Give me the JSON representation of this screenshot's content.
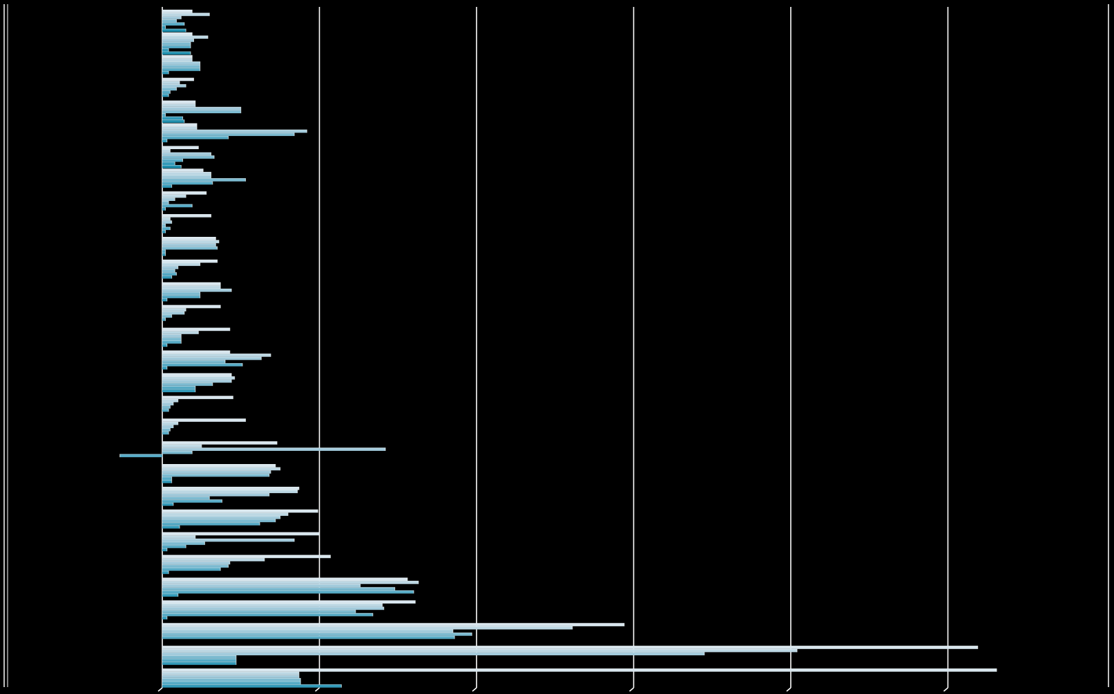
{
  "background_color": "#000000",
  "chart_data": {
    "type": "bar",
    "orientation": "horizontal",
    "title": "",
    "xlabel": "",
    "ylabel": "",
    "grid": true,
    "legend": "none",
    "xlim": [
      -0.3,
      5.8
    ],
    "gridline_values": [
      0,
      1,
      2,
      3,
      4,
      5
    ],
    "gridline_color": "#ffffff",
    "bar_colors": [
      "#d8e6ee",
      "#bcd7e3",
      "#a2cadb",
      "#7cbad0",
      "#56aac5",
      "#3299b8",
      "#1e8eac"
    ],
    "bar_outline_color": "#f4f8fa",
    "series": [
      {
        "name": "",
        "values": [
          0.19,
          0.19,
          0.19,
          0.2,
          0.21,
          0.22,
          0.23,
          0.26,
          0.28,
          0.31,
          0.34,
          0.35,
          0.37,
          0.37,
          0.43,
          0.43,
          0.44,
          0.45,
          0.53,
          0.73,
          0.72,
          0.87,
          0.99,
          1.0,
          1.07,
          1.56,
          1.61,
          2.94,
          5.19,
          5.31
        ]
      },
      {
        "name": "",
        "values": [
          0.3,
          0.29,
          0.19,
          0.11,
          0.21,
          0.22,
          0.05,
          0.31,
          0.15,
          0.05,
          0.36,
          0.24,
          0.37,
          0.15,
          0.23,
          0.69,
          0.46,
          0.1,
          0.1,
          0.25,
          0.75,
          0.86,
          0.8,
          0.21,
          0.65,
          1.63,
          1.4,
          2.61,
          4.04,
          0.87
        ]
      },
      {
        "name": "",
        "values": [
          0.12,
          0.2,
          0.24,
          0.15,
          0.5,
          0.92,
          0.31,
          0.31,
          0.08,
          0.06,
          0.34,
          0.1,
          0.44,
          0.14,
          0.12,
          0.63,
          0.44,
          0.07,
          0.07,
          1.42,
          0.69,
          0.68,
          0.75,
          0.84,
          0.43,
          1.26,
          1.41,
          1.85,
          3.45,
          0.87
        ]
      },
      {
        "name": "",
        "values": [
          0.09,
          0.18,
          0.24,
          0.09,
          0.5,
          0.84,
          0.33,
          0.53,
          0.04,
          0.02,
          0.35,
          0.08,
          0.24,
          0.06,
          0.12,
          0.4,
          0.32,
          0.05,
          0.05,
          0.19,
          0.68,
          0.3,
          0.72,
          0.27,
          0.42,
          1.48,
          1.23,
          1.97,
          0.47,
          0.88
        ]
      },
      {
        "name": "",
        "values": [
          0.14,
          0.18,
          0.24,
          0.05,
          0.02,
          0.42,
          0.13,
          0.32,
          0.19,
          0.05,
          0.02,
          0.09,
          0.24,
          0.02,
          0.12,
          0.51,
          0.21,
          0.04,
          0.04,
          -0.27,
          0.06,
          0.38,
          0.62,
          0.15,
          0.37,
          1.6,
          1.34,
          1.86,
          0.47,
          0.88
        ]
      },
      {
        "name": "",
        "values": [
          0.02,
          0.04,
          0.04,
          0.04,
          0.13,
          0.03,
          0.08,
          0.06,
          0.02,
          0.02,
          0.02,
          0.06,
          0.03,
          0.0,
          0.03,
          0.03,
          0.21,
          0.0,
          0.0,
          0.0,
          0.06,
          0.07,
          0.11,
          0.03,
          0.04,
          0.1,
          0.03,
          0.0,
          0.47,
          1.14
        ]
      },
      {
        "name": "",
        "values": [
          0.15,
          0.18,
          0.0,
          0.0,
          0.14,
          0.0,
          0.12,
          0.0,
          0.0,
          0.0,
          0.0,
          0.0,
          0.0,
          0.0,
          0.0,
          0.0,
          0.0,
          0.0,
          0.0,
          0.0,
          0.0,
          0.0,
          0.0,
          0.0,
          0.0,
          0.0,
          0.0,
          0.0,
          0.0,
          0.0
        ]
      }
    ]
  }
}
